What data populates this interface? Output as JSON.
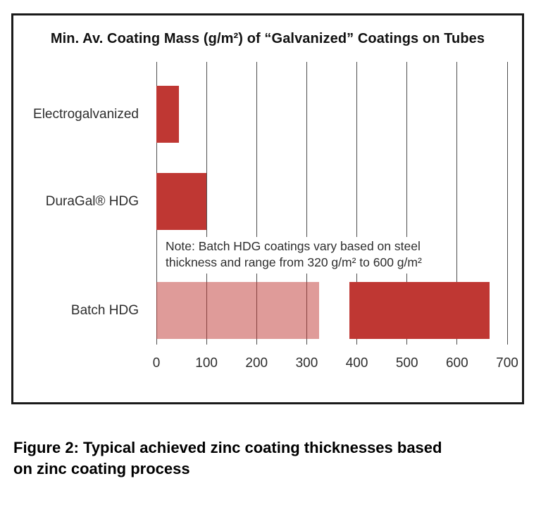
{
  "chart": {
    "title": "Min. Av. Coating Mass (g/m²) of “Galvanized” Coatings on Tubes",
    "note_line1": "Note: Batch HDG coatings vary based on steel",
    "note_line2": "thickness and range from 320 g/m² to 600 g/m²"
  },
  "figure": {
    "caption_line1": "Figure 2: Typical achieved zinc coating thicknesses based",
    "caption_line2": "on zinc coating process"
  },
  "colors": {
    "bar_red": "#bf3733",
    "bar_pink_apparent": "#de9899",
    "gridline": "#4f4f4f",
    "frame_border": "#1a1a1a",
    "text": "#2d2d2d"
  },
  "chart_data": {
    "type": "bar",
    "orientation": "horizontal",
    "title": "Min. Av. Coating Mass (g/m²) of “Galvanized” Coatings on Tubes",
    "categories": [
      "Electrogalvanized",
      "DuraGal® HDG",
      "Batch HDG"
    ],
    "bars": [
      {
        "category": "Electrogalvanized",
        "start": 0,
        "end": 45,
        "color": "#bf3733"
      },
      {
        "category": "DuraGal® HDG",
        "start": 0,
        "end": 100,
        "color": "#bf3733"
      },
      {
        "category": "Batch HDG",
        "start": 0,
        "end": 325,
        "color": "rgba(191,55,51,0.5)"
      },
      {
        "category": "Batch HDG",
        "start": 385,
        "end": 665,
        "color": "#bf3733"
      }
    ],
    "x_ticks": [
      0,
      100,
      200,
      300,
      400,
      500,
      600,
      700
    ],
    "xlim": [
      0,
      700
    ],
    "grid": true,
    "legend": false,
    "xlabel": "",
    "ylabel": "",
    "annotation": "Note: Batch HDG coatings vary based on steel thickness and range from 320 g/m² to 600 g/m²"
  }
}
